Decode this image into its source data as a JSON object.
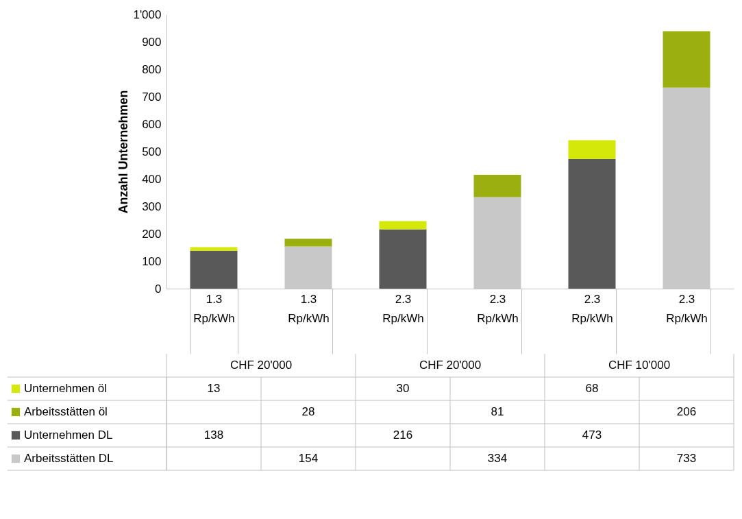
{
  "chart_data": {
    "type": "bar",
    "stacked": true,
    "ylabel": "Anzahl Unternehmen",
    "categories": [
      "1.3 Rp/kWh",
      "1.3 Rp/kWh",
      "2.3 Rp/kWh",
      "2.3 Rp/kWh",
      "2.3 Rp/kWh",
      "2.3 Rp/kWh"
    ],
    "annotations": [
      "CHF 20'000",
      "CHF 20'000",
      "CHF 10'000"
    ],
    "series": [
      {
        "name": "Arbeitsstätten DL",
        "color": "#c8c8c8",
        "values": [
          null,
          154,
          null,
          334,
          null,
          733
        ]
      },
      {
        "name": "Unternehmen DL",
        "color": "#595959",
        "values": [
          138,
          null,
          216,
          null,
          473,
          null
        ]
      },
      {
        "name": "Arbeitsstätten öl",
        "color": "#9bb00e",
        "values": [
          null,
          28,
          null,
          81,
          null,
          206
        ]
      },
      {
        "name": "Unternehmen öl",
        "color": "#d4e80a",
        "values": [
          13,
          null,
          30,
          null,
          68,
          null
        ]
      }
    ],
    "ylim": [
      0,
      1000
    ],
    "yticks": [
      0,
      100,
      200,
      300,
      400,
      500,
      600,
      700,
      800,
      900,
      {
        "value": 1000,
        "label": "1'000"
      }
    ],
    "data_labels": true,
    "legend": "bottom",
    "grid": false
  }
}
